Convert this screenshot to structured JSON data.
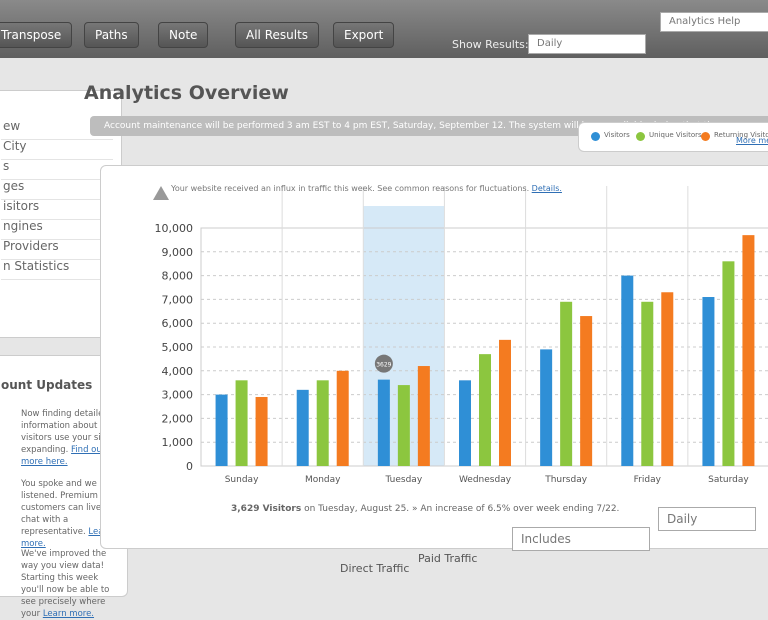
{
  "toolbar": {
    "buttons": [
      "Transpose",
      "Paths",
      "Note",
      "All Results",
      "Export"
    ],
    "show_label": "Show Results:",
    "show_select": "Daily",
    "help_select": "Analytics Help"
  },
  "sidebar": {
    "items": [
      "ew",
      "City",
      "s",
      "ges",
      "isitors",
      "ngines",
      "Providers",
      "n Statistics"
    ],
    "updates_title": "ount Updates",
    "updates": [
      {
        "text": "Now finding detailed information about how visitors use your site is expanding.",
        "link": "Find out more here."
      },
      {
        "text": "You spoke and we listened. Premium customers can live chat with a representative.",
        "link": "Learn more."
      },
      {
        "text": "We've improved the way you view data! Starting this week you'll now be able to see precisely where your",
        "link": "Learn more."
      }
    ]
  },
  "main": {
    "title": "Analytics Overview",
    "notice": "Account maintenance will be performed 3 am EST to 4 pm EST, Saturday, September 12. The system will be unavailable during that time.",
    "more": "More metrics",
    "alert": "Your website received an influx in traffic this week. See common reasons for fluctuations.",
    "alert_link": "Details.",
    "summary_bold": "3,629 Visitors",
    "summary": "on Tuesday, August 25. » An increase of 6.5% over week ending 7/22.",
    "filter": "Includes",
    "period": "Daily",
    "options": [
      "Direct Traffic",
      "Paid Traffic"
    ]
  },
  "chart_data": {
    "type": "bar",
    "categories": [
      "Sunday",
      "Monday",
      "Tuesday",
      "Wednesday",
      "Thursday",
      "Friday",
      "Saturday"
    ],
    "series": [
      {
        "name": "Visitors",
        "color": "#2f8fd6",
        "values": [
          3000,
          3200,
          3629,
          3600,
          4900,
          8000,
          7100
        ]
      },
      {
        "name": "Unique Visitors",
        "color": "#8cc63f",
        "values": [
          3600,
          3600,
          3400,
          4700,
          6900,
          6900,
          8600
        ]
      },
      {
        "name": "Returning Visitors",
        "color": "#f47b20",
        "values": [
          2900,
          4000,
          4200,
          5300,
          6300,
          7300,
          9700
        ]
      }
    ],
    "ylim": [
      0,
      10000
    ],
    "yticks": [
      0,
      {
        "value": 1000,
        "label": "1,000"
      },
      {
        "value": 2000,
        "label": "2,000"
      },
      {
        "value": 3000,
        "label": "3,000"
      },
      {
        "value": 4000,
        "label": "4,000"
      },
      {
        "value": 5000,
        "label": "5,000"
      },
      {
        "value": 6000,
        "label": "6,000"
      },
      {
        "value": 7000,
        "label": "7,000"
      },
      {
        "value": 8000,
        "label": "8,000"
      },
      {
        "value": 9000,
        "label": "9,000"
      },
      {
        "value": 10000,
        "label": "10,000"
      }
    ],
    "grid": true,
    "highlight": "Tuesday"
  }
}
